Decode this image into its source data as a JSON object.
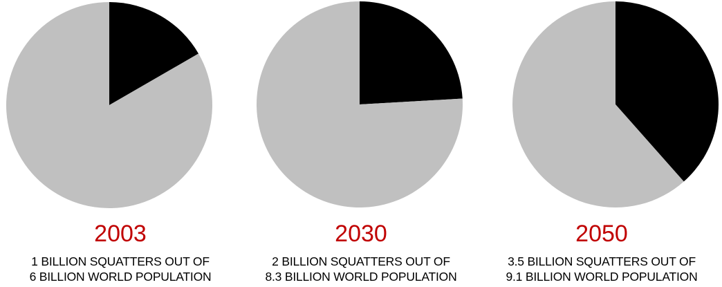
{
  "colors": {
    "squatters": "#000000",
    "rest": "#c0c0c0",
    "year_text": "#c00000",
    "caption_text": "#000000"
  },
  "chart_data": [
    {
      "type": "pie",
      "title": "2003",
      "caption_line1": "1 BILLION SQUATTERS OUT OF",
      "caption_line2": "6 BILLION WORLD POPULATION",
      "slices": [
        {
          "label": "squatters",
          "value": 1
        },
        {
          "label": "rest",
          "value": 5
        }
      ]
    },
    {
      "type": "pie",
      "title": "2030",
      "caption_line1": "2 BILLION SQUATTERS OUT OF",
      "caption_line2": "8.3 BILLION WORLD POPULATION",
      "slices": [
        {
          "label": "squatters",
          "value": 2
        },
        {
          "label": "rest",
          "value": 6.3
        }
      ]
    },
    {
      "type": "pie",
      "title": "2050",
      "caption_line1": "3.5 BILLION SQUATTERS OUT OF",
      "caption_line2": "9.1 BILLION WORLD POPULATION",
      "slices": [
        {
          "label": "squatters",
          "value": 3.5
        },
        {
          "label": "rest",
          "value": 5.6
        }
      ]
    }
  ]
}
